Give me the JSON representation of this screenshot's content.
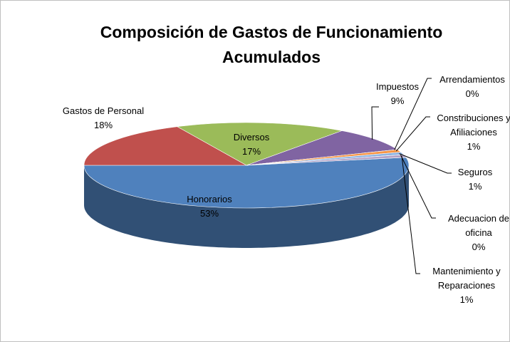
{
  "chart_data": {
    "type": "pie",
    "title": "Composición de Gastos de Funcionamiento Acumulados",
    "categories": [
      "Honorarios",
      "Gastos de Personal",
      "Diversos",
      "Impuestos",
      "Arrendamientos",
      "Constribuciones y Afiliaciones",
      "Seguros",
      "Adecuacion de oficina",
      "Mantenimiento y Reparaciones"
    ],
    "values": [
      53,
      18,
      17,
      9,
      0,
      1,
      1,
      0,
      1
    ],
    "value_labels": [
      "53%",
      "18%",
      "17%",
      "9%",
      "0%",
      "1%",
      "1%",
      "0%",
      "1%"
    ],
    "colors": [
      "#4f81bd",
      "#c0504d",
      "#9bbb59",
      "#8064a2",
      "#4bacc6",
      "#f79646",
      "#8eb4e3",
      "#e6b9b8",
      "#b3a2c7"
    ]
  }
}
